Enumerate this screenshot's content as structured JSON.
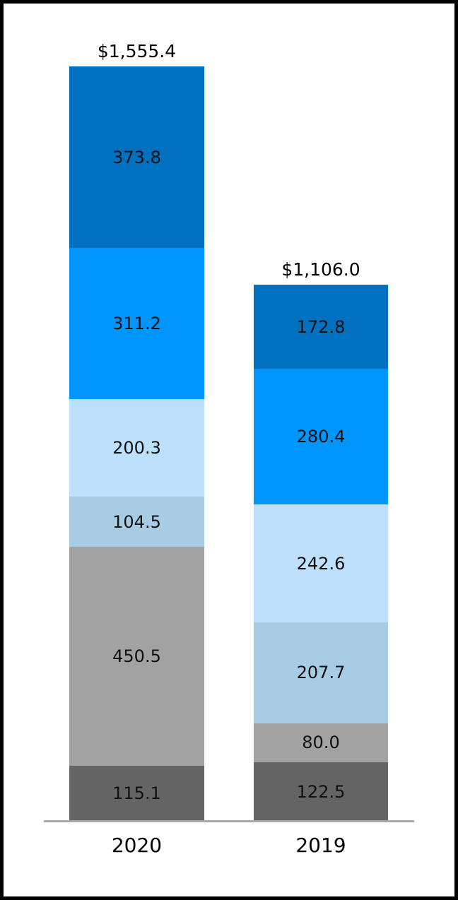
{
  "chart_data": {
    "type": "bar",
    "subtype": "stacked",
    "title": "",
    "xlabel": "",
    "ylabel": "",
    "categories": [
      "2020",
      "2019"
    ],
    "value_unit": "USD millions (implied by $ prefix on totals)",
    "axis": {
      "baseline_color": "#a9a9a9"
    },
    "layout_hints": {
      "legend": false,
      "gridlines": false,
      "y_axis_ticks": false,
      "value_labels": "inside-center",
      "total_labels": "above-bar"
    },
    "bars": [
      {
        "category": "2020",
        "total_value": 1555.4,
        "total_label": "$1,555.4",
        "segments_bottom_to_top": [
          {
            "label": "115.1",
            "value": 115.1,
            "color": "#646464"
          },
          {
            "label": "450.5",
            "value": 450.5,
            "color": "#a2a2a2"
          },
          {
            "label": "104.5",
            "value": 104.5,
            "color": "#a9cce5"
          },
          {
            "label": "200.3",
            "value": 200.3,
            "color": "#bde0fc"
          },
          {
            "label": "311.2",
            "value": 311.2,
            "color": "#0095fc"
          },
          {
            "label": "373.8",
            "value": 373.8,
            "color": "#0070c0"
          }
        ]
      },
      {
        "category": "2019",
        "total_value": 1106.0,
        "total_label": "$1,106.0",
        "segments_bottom_to_top": [
          {
            "label": "122.5",
            "value": 122.5,
            "color": "#646464"
          },
          {
            "label": "80.0",
            "value": 80.0,
            "color": "#a2a2a2"
          },
          {
            "label": "207.7",
            "value": 207.7,
            "color": "#a9cce5"
          },
          {
            "label": "242.6",
            "value": 242.6,
            "color": "#bde0fc"
          },
          {
            "label": "280.4",
            "value": 280.4,
            "color": "#0095fc"
          },
          {
            "label": "172.8",
            "value": 172.8,
            "color": "#0070c0"
          }
        ]
      }
    ]
  }
}
